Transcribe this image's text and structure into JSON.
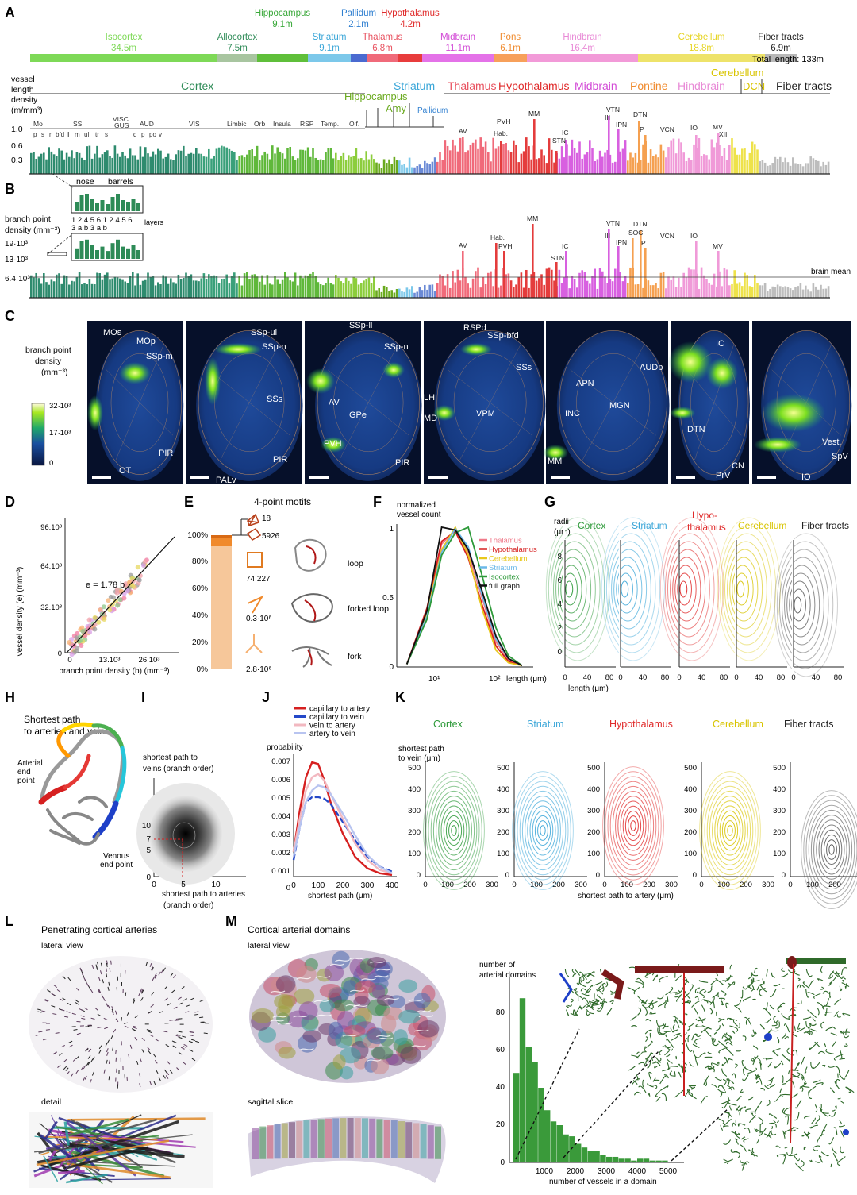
{
  "panel_letters": [
    "A",
    "B",
    "C",
    "D",
    "E",
    "F",
    "G",
    "H",
    "I",
    "J",
    "K",
    "L",
    "M"
  ],
  "panel_a": {
    "regions": [
      {
        "name": "Isocortex",
        "length": "34.5m",
        "color": "#7ed957",
        "level": 2
      },
      {
        "name": "Allocortex",
        "length": "7.5m",
        "color": "#2e8b57",
        "level": 2
      },
      {
        "name": "Hippocampus",
        "length": "9.1m",
        "color": "#39a839",
        "level": 0
      },
      {
        "name": "Striatum",
        "length": "9.1m",
        "color": "#3aa6d8",
        "level": 2
      },
      {
        "name": "Pallidum",
        "length": "2.1m",
        "color": "#2f7fd0",
        "level": 0
      },
      {
        "name": "Thalamus",
        "length": "6.8m",
        "color": "#e8515f",
        "level": 2
      },
      {
        "name": "Hypothalamus",
        "length": "4.2m",
        "color": "#e02a2a",
        "level": 0
      },
      {
        "name": "Midbrain",
        "length": "11.1m",
        "color": "#d24ad6",
        "level": 2
      },
      {
        "name": "Pons",
        "length": "6.1m",
        "color": "#f08a2c",
        "level": 2
      },
      {
        "name": "Hindbrain",
        "length": "16.4m",
        "color": "#e88ad6",
        "level": 2
      },
      {
        "name": "Cerebellum",
        "length": "18.8m",
        "color": "#e6d421",
        "level": 2
      },
      {
        "name": "Fiber tracts",
        "length": "6.9m",
        "color": "#222222",
        "level": 2
      }
    ],
    "total_length": "Total length: 133m",
    "ylabel": [
      "vessel",
      "length",
      "density",
      "(m/mm³)"
    ],
    "yticks": [
      "1.0",
      "0.6",
      "0.3"
    ],
    "group_labels": [
      "Cortex",
      "Hippocampus",
      "Amy",
      "Striatum",
      "Pallidum",
      "Thalamus",
      "Hypothalamus",
      "Midbrain",
      "Pontine",
      "Cerebellum",
      "DCN",
      "Hindbrain",
      "Fiber tracts"
    ],
    "cortex_sub": [
      "Mo",
      "SS",
      "VISC",
      "GUS",
      "AUD",
      "VIS",
      "Limbic",
      "Orb",
      "Insula",
      "RSP",
      "Temp.",
      "Olf."
    ],
    "cortex_sub2": [
      "p",
      "s",
      "n",
      "bfd",
      "ll",
      "m",
      "ul",
      "tr",
      "s",
      "d",
      "p",
      "po",
      "v"
    ],
    "nuclei": [
      "AV",
      "Hab.",
      "PVH",
      "MM",
      "STN",
      "IC",
      "VTN",
      "III",
      "IPN",
      "DTN",
      "P",
      "VCN",
      "IO",
      "MV",
      "XII"
    ]
  },
  "panel_b": {
    "ylabel": [
      "branch point",
      "density (mm⁻³)"
    ],
    "yticks": [
      "19·10³",
      "13·10³",
      "6.4·10³"
    ],
    "inset_labels": [
      "nose",
      "barrels"
    ],
    "layer_top": "1 2 4 5  6   1 2 4 5  6",
    "layer_bottom": "   3       a b     3       a b",
    "layers_word": "layers",
    "nuclei": [
      "AV",
      "Hab.",
      "PVH",
      "MM",
      "STN",
      "IC",
      "VTN",
      "III",
      "SOC",
      "IPN",
      "DTN",
      "P",
      "VCN",
      "IO",
      "MV"
    ],
    "mean_label": "brain mean"
  },
  "panel_c": {
    "colorbar_label": [
      "branch point",
      "density",
      "(mm⁻³)"
    ],
    "colorbar_ticks": [
      "32·10³",
      "17·10³",
      "0"
    ],
    "labels": [
      "MOs",
      "MOp",
      "SSp-m",
      "OT",
      "PIR",
      "SSp-ul",
      "SSp-n",
      "SSs",
      "PIR",
      "PALv",
      "SSp-ll",
      "SSp-n",
      "AV",
      "GPe",
      "PVH",
      "PIR",
      "RSPd",
      "SSp-bfd",
      "SSs",
      "LH",
      "MD",
      "VPM",
      "AUDp",
      "APN",
      "MGN",
      "INC",
      "MM",
      "IC",
      "DTN",
      "PrV",
      "CN",
      "Vest.",
      "SpV",
      "IO"
    ]
  },
  "panel_d": {
    "ylabel": "vessel density (e) (mm⁻³)",
    "xlabel": "branch point density (b) (mm⁻³)",
    "yticks": [
      "96.10³",
      "64.10³",
      "32.10³",
      "0"
    ],
    "xticks": [
      "0",
      "13.10³",
      "26.10³"
    ],
    "equation": "e = 1.78 b"
  },
  "panel_e": {
    "title": "4-point motifs",
    "yticks": [
      "100%",
      "80%",
      "60%",
      "40%",
      "20%",
      "0%"
    ],
    "counts": [
      "18",
      "5926",
      "74 227",
      "0.3·10⁶",
      "2.8·10⁶"
    ],
    "motif_names": [
      "loop",
      "forked loop",
      "fork"
    ]
  },
  "panel_f": {
    "ylabel": [
      "normalized",
      "vessel count"
    ],
    "yticks": [
      "1",
      "0.5",
      "0"
    ],
    "xticks": [
      "10¹",
      "10²"
    ],
    "xlabel": "length (μm)",
    "legend": [
      {
        "name": "Thalamus",
        "color": "#f07a8a"
      },
      {
        "name": "Hypothalamus",
        "color": "#d62020"
      },
      {
        "name": "Cerebellum",
        "color": "#e8c81a"
      },
      {
        "name": "Striatum",
        "color": "#6ab8e8"
      },
      {
        "name": "Isocortex",
        "color": "#2e9a3a"
      },
      {
        "name": "full graph",
        "color": "#111111"
      }
    ]
  },
  "panel_g": {
    "ylabel": [
      "radii",
      "(μm)"
    ],
    "titles": [
      {
        "name": "Cortex",
        "color": "#2e9a3a"
      },
      {
        "name": "Striatum",
        "color": "#3aa6d8"
      },
      {
        "name": "Hypo-thalamus",
        "color": "#e02a2a"
      },
      {
        "name": "Cerebellum",
        "color": "#d8c400"
      },
      {
        "name": "Fiber tracts",
        "color": "#222222"
      }
    ],
    "yticks": [
      "8",
      "6",
      "4",
      "2",
      "0"
    ],
    "xticks": [
      "0",
      "40",
      "80"
    ],
    "xlabel": "length (μm)"
  },
  "panel_h": {
    "title": [
      "Shortest path",
      "to arteries and veins"
    ],
    "arterial": [
      "Arterial",
      "end",
      "point"
    ],
    "venous": [
      "Venous",
      "end point"
    ]
  },
  "panel_i": {
    "ylabel": [
      "shortest path to",
      "veins (branch order)"
    ],
    "xlabel": [
      "shortest path to arteries",
      "(branch order)"
    ],
    "yticks": [
      "10",
      "7",
      "5",
      "0"
    ],
    "xticks": [
      "0",
      "5",
      "10"
    ]
  },
  "panel_j": {
    "ylabel": "probability",
    "yticks": [
      "0.007",
      "0.006",
      "0.005",
      "0.004",
      "0.003",
      "0.002",
      "0.001",
      "0"
    ],
    "xticks": [
      "0",
      "100",
      "200",
      "300",
      "400"
    ],
    "xlabel": "shortest path (μm)",
    "legend": [
      {
        "name": "capillary to artery",
        "color": "#d62020"
      },
      {
        "name": "capillary to vein",
        "color": "#2448c8"
      },
      {
        "name": "vein to artery",
        "color": "#f2b8c0"
      },
      {
        "name": "artery to vein",
        "color": "#b8c4f0"
      }
    ]
  },
  "panel_k": {
    "titles": [
      {
        "name": "Cortex",
        "color": "#2e9a3a"
      },
      {
        "name": "Striatum",
        "color": "#3aa6d8"
      },
      {
        "name": "Hypothalamus",
        "color": "#e02a2a"
      },
      {
        "name": "Cerebellum",
        "color": "#d8c400"
      },
      {
        "name": "Fiber tracts",
        "color": "#222222"
      }
    ],
    "ylabel": [
      "shortest path",
      "to vein (μm)"
    ],
    "yticks": [
      "500",
      "400",
      "300",
      "200",
      "100",
      "0"
    ],
    "xticks_a": [
      "0",
      "100",
      "200",
      "300"
    ],
    "xticks_b": [
      "0",
      "100",
      "200"
    ],
    "xlabel": "shortest path to artery (μm)"
  },
  "panel_l": {
    "title": "Penetrating cortical arteries",
    "sub1": "lateral view",
    "sub2": "detail"
  },
  "panel_m": {
    "title": "Cortical arterial domains",
    "sub1": "lateral view",
    "sub2": "sagittal slice",
    "hist_ylabel": [
      "number of",
      "arterial domains"
    ],
    "hist_yticks": [
      "80",
      "60",
      "40",
      "20",
      "0"
    ],
    "hist_xticks": [
      "1000",
      "2000",
      "3000",
      "4000",
      "5000"
    ],
    "hist_xlabel": "number of vessels in a domain"
  },
  "chart_data": [
    {
      "type": "line",
      "title": "",
      "xlabel": "length (μm)",
      "ylabel": "normalized vessel count",
      "x": [
        3,
        6,
        10,
        16,
        25,
        40,
        65,
        100,
        160
      ],
      "series": [
        {
          "name": "Thalamus",
          "values": [
            0.02,
            0.4,
            0.88,
            0.98,
            0.82,
            0.5,
            0.18,
            0.05,
            0.01
          ]
        },
        {
          "name": "Hypothalamus",
          "values": [
            0.02,
            0.42,
            0.9,
            0.97,
            0.78,
            0.45,
            0.15,
            0.04,
            0.01
          ]
        },
        {
          "name": "Cerebellum",
          "values": [
            0.02,
            0.38,
            0.84,
            1.0,
            0.8,
            0.42,
            0.12,
            0.03,
            0.01
          ]
        },
        {
          "name": "Striatum",
          "values": [
            0.02,
            0.36,
            0.82,
            0.99,
            0.86,
            0.52,
            0.2,
            0.06,
            0.01
          ]
        },
        {
          "name": "Isocortex",
          "values": [
            0.02,
            0.34,
            0.8,
            0.96,
            1.0,
            0.66,
            0.28,
            0.08,
            0.01
          ]
        },
        {
          "name": "full graph",
          "values": [
            0.02,
            0.4,
            1.0,
            0.98,
            0.84,
            0.55,
            0.22,
            0.06,
            0.01
          ]
        }
      ]
    },
    {
      "type": "line",
      "title": "",
      "xlabel": "shortest path (μm)",
      "ylabel": "probability",
      "x": [
        0,
        25,
        50,
        75,
        100,
        125,
        150,
        200,
        250,
        300,
        350,
        400
      ],
      "series": [
        {
          "name": "capillary to artery",
          "values": [
            0.0015,
            0.004,
            0.006,
            0.0069,
            0.0068,
            0.0058,
            0.0045,
            0.0026,
            0.0012,
            0.0005,
            0.0002,
            0.0001
          ]
        },
        {
          "name": "capillary to vein",
          "values": [
            0.001,
            0.003,
            0.0045,
            0.0048,
            0.0048,
            0.0047,
            0.0044,
            0.0033,
            0.0022,
            0.0012,
            0.0006,
            0.0003
          ]
        },
        {
          "name": "vein to artery",
          "values": [
            0.0015,
            0.0035,
            0.0052,
            0.006,
            0.0062,
            0.0058,
            0.005,
            0.0035,
            0.002,
            0.001,
            0.0004,
            0.0002
          ]
        },
        {
          "name": "artery to vein",
          "values": [
            0.0012,
            0.003,
            0.0045,
            0.0052,
            0.0055,
            0.0054,
            0.005,
            0.0038,
            0.0025,
            0.0013,
            0.0006,
            0.0002
          ]
        }
      ]
    },
    {
      "type": "bar",
      "title": "",
      "xlabel": "number of vessels in a domain",
      "ylabel": "number of arterial domains",
      "categories": [
        "200",
        "400",
        "600",
        "800",
        "1000",
        "1200",
        "1400",
        "1600",
        "1800",
        "2000",
        "2200",
        "2400",
        "2600",
        "2800",
        "3000",
        "3200",
        "3400",
        "3600",
        "3800",
        "4000",
        "4200",
        "4400",
        "4600",
        "4800",
        "5000"
      ],
      "values": [
        48,
        88,
        62,
        54,
        40,
        28,
        22,
        20,
        15,
        14,
        10,
        8,
        6,
        6,
        4,
        3,
        3,
        2,
        2,
        1,
        2,
        2,
        1,
        1,
        1
      ]
    }
  ]
}
